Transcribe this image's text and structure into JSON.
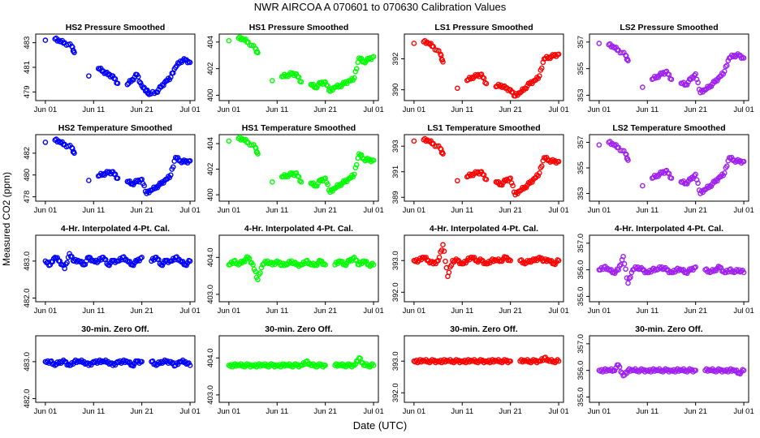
{
  "title": "NWR   AIRCOA A   070601 to 070630   Calibration Values",
  "y_axis_label": "Measured CO2 (ppm)",
  "x_axis_label": "Date (UTC)",
  "colors": {
    "HS2": "#0000ff",
    "HS1": "#00ff00",
    "LS1": "#ff0000",
    "LS2": "#a020f0"
  },
  "chart_data": [
    {
      "type": "scatter",
      "title": "HS2 Pressure Smoothed",
      "series": "HS2",
      "row": 0,
      "col": 0,
      "x_ticks": [
        "Jun 01",
        "Jun 11",
        "Jun 21",
        "Jul 01"
      ],
      "y_ticks": [
        479,
        481,
        483
      ],
      "ylim": [
        478.3,
        483.7
      ],
      "x": [
        0,
        2,
        3,
        4,
        5.5,
        6,
        9,
        11,
        12,
        13,
        14,
        15,
        17,
        18,
        19,
        20,
        21,
        21.5,
        23,
        24,
        25,
        26,
        27,
        28,
        29,
        30
      ],
      "y": [
        483.2,
        483.3,
        483.1,
        483.0,
        482.7,
        482.2,
        480.3,
        480.9,
        480.7,
        480.4,
        480.3,
        479.7,
        479.6,
        480.0,
        480.4,
        479.5,
        479.1,
        478.8,
        479.0,
        479.4,
        479.9,
        480.2,
        481.0,
        481.5,
        481.6,
        481.4
      ]
    },
    {
      "type": "scatter",
      "title": "HS1 Pressure Smoothed",
      "series": "HS1",
      "row": 0,
      "col": 1,
      "x_ticks": [
        "Jun 01",
        "Jun 11",
        "Jun 21",
        "Jul 01"
      ],
      "y_ticks": [
        400,
        402,
        404
      ],
      "ylim": [
        399.6,
        404.6
      ],
      "x": [
        0,
        2,
        3,
        4,
        5.5,
        6,
        9,
        11,
        12,
        13,
        14,
        15,
        17,
        18,
        19,
        20,
        21,
        22,
        23,
        24,
        25,
        26,
        27,
        28,
        29,
        30
      ],
      "y": [
        404.1,
        404.3,
        404.2,
        404.0,
        403.5,
        403.2,
        401.1,
        401.4,
        401.5,
        401.6,
        401.6,
        401.0,
        400.8,
        400.6,
        400.9,
        401.0,
        400.3,
        400.6,
        400.7,
        400.9,
        401.1,
        401.3,
        402.8,
        402.5,
        402.7,
        402.9
      ]
    },
    {
      "type": "scatter",
      "title": "LS1 Pressure Smoothed",
      "series": "LS1",
      "row": 0,
      "col": 2,
      "x_ticks": [
        "Jun 01",
        "Jun 11",
        "Jun 21",
        "Jul 01"
      ],
      "y_ticks": [
        390,
        392
      ],
      "ylim": [
        389.3,
        393.6
      ],
      "x": [
        0,
        2,
        3,
        4,
        5.5,
        6,
        9,
        11,
        12,
        13,
        14,
        15,
        17,
        18,
        19,
        20,
        21,
        22,
        23,
        24,
        25,
        26,
        27,
        28,
        29,
        30
      ],
      "y": [
        393.0,
        393.1,
        393.0,
        392.8,
        392.3,
        391.8,
        390.1,
        390.6,
        390.8,
        390.9,
        391.0,
        390.4,
        390.2,
        390.3,
        390.1,
        390.0,
        389.6,
        389.8,
        390.1,
        390.4,
        390.6,
        390.9,
        392.0,
        392.1,
        392.2,
        392.3
      ]
    },
    {
      "type": "scatter",
      "title": "LS2 Pressure Smoothed",
      "series": "LS2",
      "row": 0,
      "col": 3,
      "x_ticks": [
        "Jun 01",
        "Jun 11",
        "Jun 21",
        "Jul 01"
      ],
      "y_ticks": [
        353,
        355,
        357
      ],
      "ylim": [
        352.6,
        357.6
      ],
      "x": [
        0,
        2,
        3,
        4,
        5.5,
        6,
        9,
        11,
        12,
        13,
        14,
        15,
        17,
        18,
        19,
        20,
        21,
        22,
        23,
        24,
        25,
        26,
        27,
        28,
        29,
        30
      ],
      "y": [
        356.9,
        356.8,
        356.6,
        356.4,
        356.0,
        355.6,
        353.6,
        354.2,
        354.4,
        354.6,
        354.8,
        354.2,
        353.9,
        353.8,
        354.2,
        354.6,
        353.2,
        353.4,
        353.7,
        354.0,
        354.4,
        354.8,
        355.8,
        356.0,
        356.0,
        355.8
      ]
    },
    {
      "type": "scatter",
      "title": "HS2 Temperature Smoothed",
      "series": "HS2",
      "row": 1,
      "col": 0,
      "x_ticks": [
        "Jun 01",
        "Jun 11",
        "Jun 21",
        "Jul 01"
      ],
      "y_ticks": [
        478,
        480,
        482
      ],
      "ylim": [
        477.6,
        483.7
      ],
      "x": [
        0,
        2,
        3,
        4,
        5.5,
        6,
        9,
        11,
        12,
        13,
        14,
        15,
        17,
        18,
        19,
        20,
        21,
        22,
        23,
        24,
        25,
        26,
        27,
        28,
        29,
        30
      ],
      "y": [
        483.0,
        483.2,
        483.0,
        482.8,
        482.5,
        482.0,
        479.5,
        479.9,
        480.1,
        480.2,
        480.3,
        479.7,
        479.4,
        479.2,
        479.4,
        479.6,
        478.3,
        478.6,
        478.9,
        479.2,
        479.6,
        480.0,
        481.6,
        481.3,
        481.2,
        481.3
      ]
    },
    {
      "type": "scatter",
      "title": "HS1 Temperature Smoothed",
      "series": "HS1",
      "row": 1,
      "col": 1,
      "x_ticks": [
        "Jun 01",
        "Jun 11",
        "Jun 21",
        "Jul 01"
      ],
      "y_ticks": [
        400,
        402,
        404
      ],
      "ylim": [
        399.5,
        404.7
      ],
      "x": [
        0,
        2,
        3,
        4,
        5.5,
        6,
        9,
        11,
        12,
        13,
        14,
        15,
        17,
        18,
        19,
        20,
        21,
        22,
        23,
        24,
        25,
        26,
        27,
        28,
        29,
        30
      ],
      "y": [
        404.2,
        404.4,
        404.3,
        404.1,
        403.7,
        403.2,
        401.0,
        401.4,
        401.5,
        401.6,
        401.7,
        401.0,
        400.9,
        400.7,
        401.1,
        401.3,
        400.2,
        400.5,
        400.8,
        401.0,
        401.3,
        401.6,
        403.2,
        402.8,
        402.7,
        402.7
      ]
    },
    {
      "type": "scatter",
      "title": "LS1 Temperature Smoothed",
      "series": "LS1",
      "row": 1,
      "col": 2,
      "x_ticks": [
        "Jun 01",
        "Jun 11",
        "Jun 21",
        "Jul 01"
      ],
      "y_ticks": [
        389,
        391,
        393
      ],
      "ylim": [
        388.7,
        393.9
      ],
      "x": [
        0,
        2,
        3,
        4,
        5.5,
        6,
        9,
        11,
        12,
        13,
        14,
        15,
        17,
        18,
        19,
        20,
        21,
        22,
        23,
        24,
        25,
        26,
        27,
        28,
        29,
        30
      ],
      "y": [
        393.4,
        393.5,
        393.4,
        393.2,
        392.8,
        392.4,
        390.3,
        390.6,
        390.8,
        390.9,
        391.0,
        390.4,
        390.2,
        390.0,
        390.3,
        390.5,
        389.2,
        389.5,
        389.8,
        390.1,
        390.5,
        390.9,
        392.1,
        391.9,
        391.8,
        391.8
      ]
    },
    {
      "type": "scatter",
      "title": "LS2 Temperature Smoothed",
      "series": "LS2",
      "row": 1,
      "col": 3,
      "x_ticks": [
        "Jun 01",
        "Jun 11",
        "Jun 21",
        "Jul 01"
      ],
      "y_ticks": [
        353,
        355,
        357
      ],
      "ylim": [
        352.4,
        357.6
      ],
      "x": [
        0,
        2,
        3,
        4,
        5.5,
        6,
        9,
        11,
        12,
        13,
        14,
        15,
        17,
        18,
        19,
        20,
        21,
        22,
        23,
        24,
        25,
        26,
        27,
        28,
        29,
        30
      ],
      "y": [
        356.8,
        357.0,
        356.8,
        356.6,
        356.1,
        355.6,
        353.6,
        354.2,
        354.4,
        354.6,
        354.8,
        354.2,
        353.9,
        353.8,
        354.1,
        354.5,
        353.0,
        353.3,
        353.6,
        353.9,
        354.3,
        354.6,
        355.8,
        355.6,
        355.5,
        355.5
      ]
    },
    {
      "type": "scatter",
      "title": "4-Hr. Interpolated 4-Pt. Cal.",
      "series": "HS2",
      "row": 2,
      "col": 0,
      "x_ticks": [
        "Jun 01",
        "Jun 11",
        "Jun 21",
        "Jul 01"
      ],
      "y_ticks": [
        482.0,
        483.0
      ],
      "ylim": [
        481.9,
        483.7
      ],
      "x": [
        0,
        1,
        2,
        3,
        4,
        5,
        6,
        7,
        8,
        9,
        10,
        11,
        12,
        13,
        14,
        15,
        16,
        17,
        18,
        19,
        20,
        22,
        23,
        24,
        25,
        26,
        27,
        28,
        29,
        30
      ],
      "y": [
        483.0,
        482.9,
        483.1,
        483.0,
        482.8,
        483.2,
        483.0,
        483.0,
        482.9,
        483.1,
        483.0,
        483.0,
        483.1,
        482.9,
        483.0,
        483.0,
        483.1,
        483.0,
        482.9,
        483.0,
        483.1,
        483.0,
        483.1,
        482.9,
        483.0,
        483.0,
        483.1,
        483.0,
        482.9,
        483.0
      ]
    },
    {
      "type": "scatter",
      "title": "4-Hr. Interpolated 4-Pt. Cal.",
      "series": "HS1",
      "row": 2,
      "col": 1,
      "x_ticks": [
        "Jun 01",
        "Jun 11",
        "Jun 21",
        "Jul 01"
      ],
      "y_ticks": [
        403.0,
        404.0
      ],
      "ylim": [
        402.8,
        404.6
      ],
      "x": [
        0,
        1,
        2,
        3,
        4,
        5,
        6,
        7,
        8,
        9,
        10,
        11,
        12,
        13,
        14,
        15,
        16,
        17,
        18,
        19,
        20,
        22,
        23,
        24,
        25,
        26,
        27,
        28,
        29,
        30
      ],
      "y": [
        403.8,
        403.9,
        403.8,
        403.9,
        404.0,
        403.8,
        403.4,
        403.8,
        403.9,
        403.8,
        403.9,
        403.8,
        403.8,
        403.9,
        403.8,
        403.8,
        403.9,
        403.8,
        403.8,
        403.9,
        403.8,
        403.8,
        403.9,
        403.8,
        403.9,
        404.0,
        403.8,
        403.9,
        403.8,
        403.8
      ]
    },
    {
      "type": "scatter",
      "title": "4-Hr. Interpolated 4-Pt. Cal.",
      "series": "LS1",
      "row": 2,
      "col": 2,
      "x_ticks": [
        "Jun 01",
        "Jun 11",
        "Jun 21",
        "Jul 01"
      ],
      "y_ticks": [
        392.0,
        393.0
      ],
      "ylim": [
        391.7,
        393.8
      ],
      "x": [
        0,
        1,
        2,
        3,
        4,
        5,
        6,
        7,
        8,
        9,
        10,
        11,
        12,
        13,
        14,
        15,
        16,
        17,
        18,
        19,
        20,
        22,
        23,
        24,
        25,
        26,
        27,
        28,
        29,
        30
      ],
      "y": [
        393.0,
        393.0,
        393.1,
        393.0,
        392.9,
        393.0,
        393.5,
        392.5,
        393.0,
        393.0,
        392.9,
        393.0,
        393.1,
        393.0,
        393.0,
        392.9,
        393.0,
        393.0,
        393.0,
        393.1,
        393.0,
        393.0,
        392.9,
        393.0,
        393.0,
        393.1,
        393.0,
        393.0,
        392.9,
        393.0
      ]
    },
    {
      "type": "scatter",
      "title": "4-Hr. Interpolated 4-Pt. Cal.",
      "series": "LS2",
      "row": 2,
      "col": 3,
      "x_ticks": [
        "Jun 01",
        "Jun 11",
        "Jun 21",
        "Jul 01"
      ],
      "y_ticks": [
        355.0,
        356.0,
        357.0
      ],
      "ylim": [
        354.8,
        357.3
      ],
      "x": [
        0,
        1,
        2,
        3,
        4,
        5,
        6,
        7,
        8,
        9,
        10,
        11,
        12,
        13,
        14,
        15,
        16,
        17,
        18,
        19,
        20,
        22,
        23,
        24,
        25,
        26,
        27,
        28,
        29,
        30
      ],
      "y": [
        356.0,
        356.1,
        356.0,
        355.9,
        356.0,
        356.5,
        355.5,
        356.0,
        356.1,
        356.0,
        355.9,
        356.0,
        356.0,
        356.1,
        356.0,
        355.9,
        356.0,
        356.0,
        355.9,
        356.0,
        356.1,
        356.0,
        355.9,
        356.0,
        356.1,
        355.9,
        356.0,
        355.9,
        356.0,
        355.9
      ]
    },
    {
      "type": "scatter",
      "title": "30-min. Zero Off.",
      "series": "HS2",
      "row": 3,
      "col": 0,
      "x_ticks": [
        "Jun 01",
        "Jun 11",
        "Jun 21",
        "Jul 01"
      ],
      "y_ticks": [
        482.0,
        483.0
      ],
      "ylim": [
        481.9,
        483.7
      ],
      "x": [
        0,
        1,
        2,
        3,
        4,
        5,
        6,
        7,
        8,
        9,
        10,
        11,
        12,
        13,
        14,
        15,
        16,
        17,
        18,
        19,
        20,
        22,
        23,
        24,
        25,
        26,
        27,
        28,
        29,
        30
      ],
      "y": [
        483.0,
        483.0,
        482.9,
        483.0,
        483.0,
        482.9,
        483.0,
        483.0,
        483.0,
        482.9,
        483.0,
        483.0,
        483.0,
        483.0,
        482.9,
        483.0,
        483.0,
        483.0,
        482.9,
        483.0,
        483.0,
        483.0,
        482.9,
        483.0,
        483.0,
        483.0,
        482.9,
        483.0,
        483.0,
        482.9
      ]
    },
    {
      "type": "scatter",
      "title": "30-min. Zero Off.",
      "series": "HS1",
      "row": 3,
      "col": 1,
      "x_ticks": [
        "Jun 01",
        "Jun 11",
        "Jun 21",
        "Jul 01"
      ],
      "y_ticks": [
        403.0,
        404.0
      ],
      "ylim": [
        402.8,
        404.6
      ],
      "x": [
        0,
        1,
        2,
        3,
        4,
        5,
        6,
        7,
        8,
        9,
        10,
        11,
        12,
        13,
        14,
        15,
        16,
        17,
        18,
        19,
        20,
        22,
        23,
        24,
        25,
        26,
        27,
        28,
        29,
        30
      ],
      "y": [
        403.8,
        403.8,
        403.8,
        403.8,
        403.8,
        403.8,
        403.8,
        403.8,
        403.8,
        403.8,
        403.8,
        403.8,
        403.8,
        403.8,
        403.8,
        403.8,
        403.9,
        403.8,
        403.8,
        403.8,
        403.8,
        403.8,
        403.8,
        403.8,
        403.8,
        403.8,
        404.0,
        403.8,
        403.8,
        403.8
      ]
    },
    {
      "type": "scatter",
      "title": "30-min. Zero Off.",
      "series": "LS1",
      "row": 3,
      "col": 2,
      "x_ticks": [
        "Jun 01",
        "Jun 11",
        "Jun 21",
        "Jul 01"
      ],
      "y_ticks": [
        392.0,
        393.0
      ],
      "ylim": [
        391.7,
        393.8
      ],
      "x": [
        0,
        1,
        2,
        3,
        4,
        5,
        6,
        7,
        8,
        9,
        10,
        11,
        12,
        13,
        14,
        15,
        16,
        17,
        18,
        19,
        20,
        22,
        23,
        24,
        25,
        26,
        27,
        28,
        29,
        30
      ],
      "y": [
        393.0,
        393.0,
        393.0,
        393.0,
        393.0,
        393.0,
        393.0,
        393.0,
        393.0,
        393.0,
        393.0,
        393.0,
        393.0,
        393.0,
        393.0,
        393.0,
        393.0,
        393.0,
        393.0,
        393.0,
        393.0,
        393.0,
        393.0,
        393.0,
        393.0,
        393.0,
        393.1,
        393.0,
        393.0,
        393.0
      ]
    },
    {
      "type": "scatter",
      "title": "30-min. Zero Off.",
      "series": "LS2",
      "row": 3,
      "col": 3,
      "x_ticks": [
        "Jun 01",
        "Jun 11",
        "Jun 21",
        "Jul 01"
      ],
      "y_ticks": [
        355.0,
        356.0,
        357.0
      ],
      "ylim": [
        354.8,
        357.3
      ],
      "x": [
        0,
        1,
        2,
        3,
        4,
        5,
        6,
        7,
        8,
        9,
        10,
        11,
        12,
        13,
        14,
        15,
        16,
        17,
        18,
        19,
        20,
        22,
        23,
        24,
        25,
        26,
        27,
        28,
        29,
        30
      ],
      "y": [
        356.0,
        356.0,
        356.0,
        356.0,
        356.2,
        355.8,
        356.0,
        356.0,
        356.0,
        356.0,
        356.0,
        356.0,
        356.0,
        356.0,
        356.0,
        356.0,
        356.0,
        356.0,
        356.0,
        356.0,
        356.0,
        356.0,
        356.0,
        356.0,
        356.0,
        356.0,
        356.0,
        356.0,
        355.9,
        356.0
      ]
    }
  ]
}
